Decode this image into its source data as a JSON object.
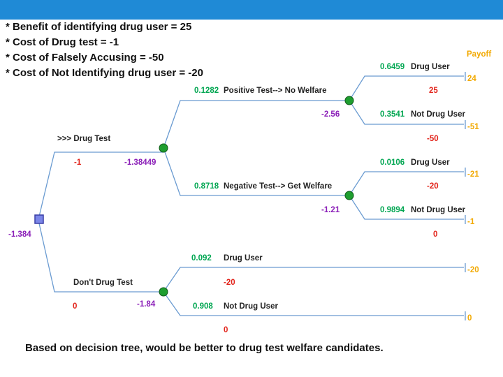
{
  "assumptions": [
    "* Benefit of identifying drug user = 25",
    "* Cost of Drug test = -1",
    "* Cost of Falsely Accusing = -50",
    "* Cost of Not Identifying drug user = -20"
  ],
  "payoff_header": "Payoff",
  "root": {
    "value": "-1.384"
  },
  "drug_test": {
    "label": ">>> Drug Test",
    "cost": "-1",
    "value": "-1.38449",
    "positive": {
      "prob": "0.1282",
      "label": "Positive Test--> No Welfare",
      "value": "-2.56",
      "outcomes": [
        {
          "prob": "0.6459",
          "label": "Drug User",
          "gain": "25",
          "payoff": "24"
        },
        {
          "prob": "0.3541",
          "label": "Not Drug User",
          "gain": "-50",
          "payoff": "-51"
        }
      ]
    },
    "negative": {
      "prob": "0.8718",
      "label": "Negative Test--> Get Welfare",
      "value": "-1.21",
      "outcomes": [
        {
          "prob": "0.0106",
          "label": "Drug User",
          "gain": "-20",
          "payoff": "-21"
        },
        {
          "prob": "0.9894",
          "label": "Not Drug User",
          "gain": "0",
          "payoff": "-1"
        }
      ]
    }
  },
  "no_test": {
    "label": "Don't Drug Test",
    "cost": "0",
    "value": "-1.84",
    "outcomes": [
      {
        "prob": "0.092",
        "label": "Drug User",
        "gain": "-20",
        "payoff": "-20"
      },
      {
        "prob": "0.908",
        "label": "Not Drug User",
        "gain": "0",
        "payoff": "0"
      }
    ]
  },
  "conclusion": "Based on decision tree, would be better to drug test welfare candidates.",
  "colors": {
    "header_bar": "#1f8ad6",
    "probability": "#00a651",
    "gain": "#e2241b",
    "expected_value": "#8b1fb8",
    "payoff": "#f2a900",
    "branch_line": "#6a9bd1"
  }
}
